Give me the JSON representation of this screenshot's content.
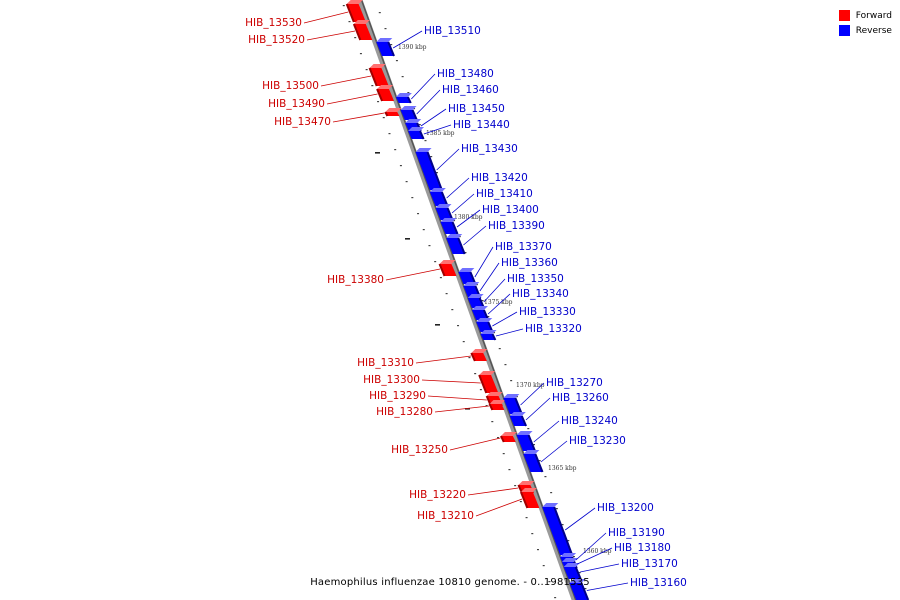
{
  "legend": {
    "forward": {
      "label": "Forward",
      "color": "#ff0000"
    },
    "reverse": {
      "label": "Reverse",
      "color": "#0000ff"
    }
  },
  "caption": "Haemophilus influenzae 10810 genome. - 0..1981535",
  "colors": {
    "forward_text": "#cc0000",
    "reverse_text": "#0000cc",
    "backbone": "#888888"
  },
  "tick_labels": [
    "1390 kbp",
    "1385 kbp",
    "1380 kbp",
    "1375 kbp",
    "1370 kbp",
    "1365 kbp",
    "1360 kbp"
  ],
  "genes": [
    {
      "name": "HIB_13530",
      "strand": "forward"
    },
    {
      "name": "HIB_13520",
      "strand": "forward"
    },
    {
      "name": "HIB_13510",
      "strand": "reverse"
    },
    {
      "name": "HIB_13500",
      "strand": "forward"
    },
    {
      "name": "HIB_13490",
      "strand": "forward"
    },
    {
      "name": "HIB_13480",
      "strand": "reverse"
    },
    {
      "name": "HIB_13470",
      "strand": "forward"
    },
    {
      "name": "HIB_13460",
      "strand": "reverse"
    },
    {
      "name": "HIB_13450",
      "strand": "reverse"
    },
    {
      "name": "HIB_13440",
      "strand": "reverse"
    },
    {
      "name": "HIB_13430",
      "strand": "reverse"
    },
    {
      "name": "HIB_13420",
      "strand": "reverse"
    },
    {
      "name": "HIB_13410",
      "strand": "reverse"
    },
    {
      "name": "HIB_13400",
      "strand": "reverse"
    },
    {
      "name": "HIB_13390",
      "strand": "reverse"
    },
    {
      "name": "HIB_13380",
      "strand": "forward"
    },
    {
      "name": "HIB_13370",
      "strand": "reverse"
    },
    {
      "name": "HIB_13360",
      "strand": "reverse"
    },
    {
      "name": "HIB_13350",
      "strand": "reverse"
    },
    {
      "name": "HIB_13340",
      "strand": "reverse"
    },
    {
      "name": "HIB_13330",
      "strand": "reverse"
    },
    {
      "name": "HIB_13320",
      "strand": "reverse"
    },
    {
      "name": "HIB_13310",
      "strand": "forward"
    },
    {
      "name": "HIB_13300",
      "strand": "forward"
    },
    {
      "name": "HIB_13290",
      "strand": "forward"
    },
    {
      "name": "HIB_13280",
      "strand": "forward"
    },
    {
      "name": "HIB_13270",
      "strand": "reverse"
    },
    {
      "name": "HIB_13260",
      "strand": "reverse"
    },
    {
      "name": "HIB_13250",
      "strand": "forward"
    },
    {
      "name": "HIB_13240",
      "strand": "reverse"
    },
    {
      "name": "HIB_13230",
      "strand": "reverse"
    },
    {
      "name": "HIB_13220",
      "strand": "forward"
    },
    {
      "name": "HIB_13210",
      "strand": "forward"
    },
    {
      "name": "HIB_13200",
      "strand": "reverse"
    },
    {
      "name": "HIB_13190",
      "strand": "reverse"
    },
    {
      "name": "HIB_13180",
      "strand": "reverse"
    },
    {
      "name": "HIB_13170",
      "strand": "reverse"
    },
    {
      "name": "HIB_13160",
      "strand": "reverse"
    }
  ]
}
